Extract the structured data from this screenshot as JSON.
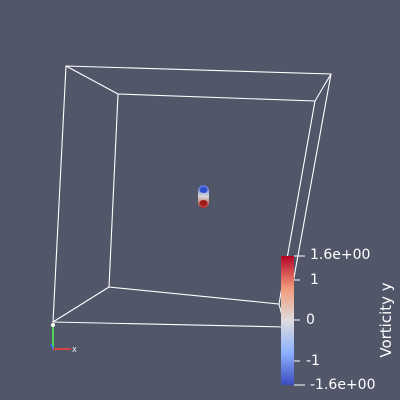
{
  "viewport": {
    "background": "#525669"
  },
  "scene": {
    "outline_color": "#ffffff",
    "object": {
      "top_color": "#4a66d8",
      "middle_color": "#d9d9d9",
      "bottom_color": "#b1271f"
    }
  },
  "orientation_axes": {
    "x_color": "#ff3b3b",
    "y_color": "#4cff4c",
    "z_color": "#3b62ff",
    "x_label": "X",
    "y_label": "Y",
    "z_label": "Z"
  },
  "color_legend": {
    "title": "Vorticity y",
    "colormap": [
      "#b40426",
      "#f49a7b",
      "#dddddd",
      "#8db0fe",
      "#3b4cc0"
    ],
    "tick_labels": {
      "max": "1.6e+00",
      "one": "1",
      "zero": "0",
      "minus_one": "-1",
      "min": "-1.6e+00"
    }
  }
}
